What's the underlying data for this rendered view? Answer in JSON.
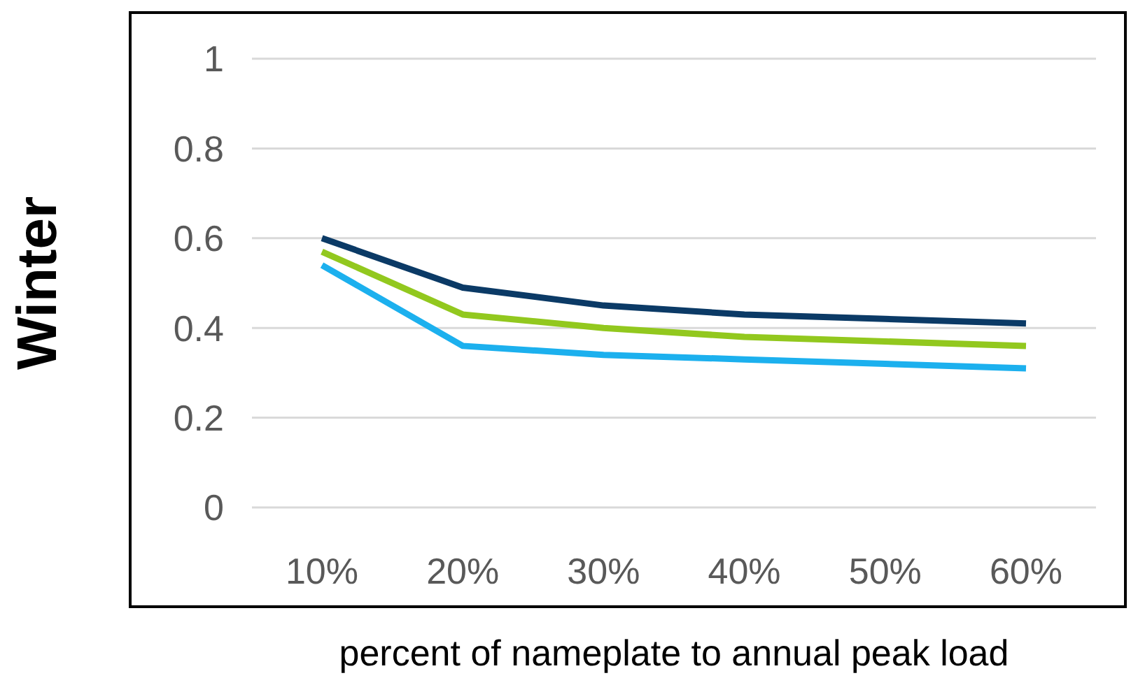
{
  "chart_data": {
    "type": "line",
    "xlabel": "percent of nameplate to annual peak load",
    "ylabel": "Winter",
    "categories": [
      "10%",
      "20%",
      "30%",
      "40%",
      "50%",
      "60%"
    ],
    "series": [
      {
        "color": "#0b3a66",
        "values": [
          0.6,
          0.49,
          0.45,
          0.43,
          0.42,
          0.41
        ]
      },
      {
        "color": "#92c81e",
        "values": [
          0.57,
          0.43,
          0.4,
          0.38,
          0.37,
          0.36
        ]
      },
      {
        "color": "#1cb0ee",
        "values": [
          0.54,
          0.36,
          0.34,
          0.33,
          0.32,
          0.31
        ]
      }
    ],
    "ylim": [
      0,
      1
    ],
    "yticks": [
      0,
      0.2,
      0.4,
      0.6,
      0.8,
      1
    ],
    "grid": "y",
    "legend": false,
    "marker": "none",
    "line_style": "solid"
  }
}
